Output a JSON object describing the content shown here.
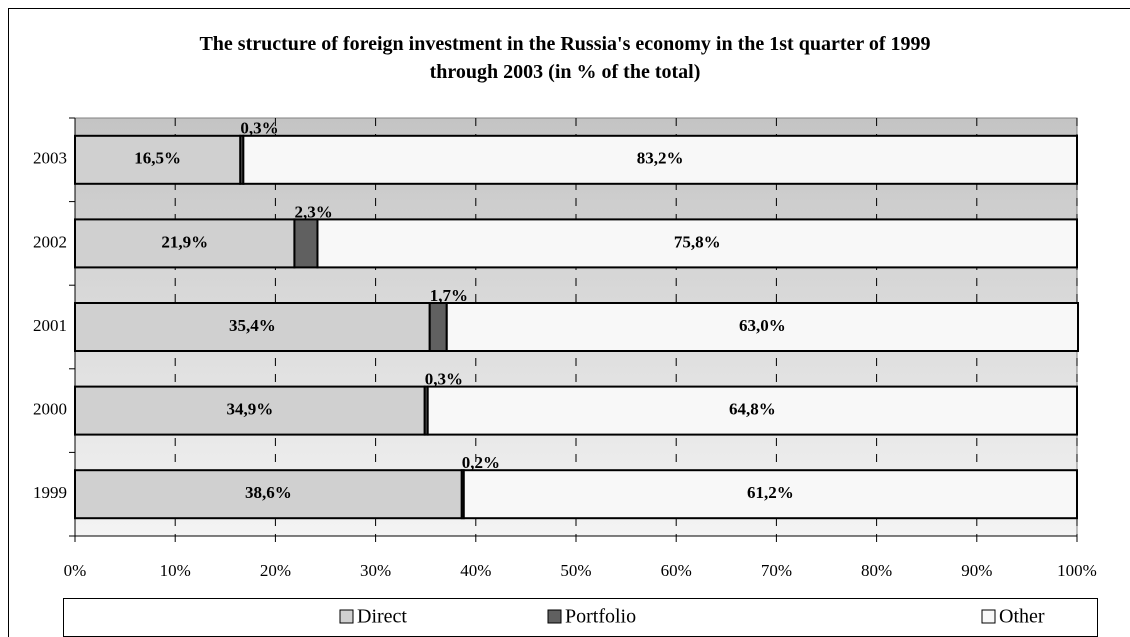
{
  "chart_data": {
    "type": "stacked-bar-horizontal",
    "title": "The structure of foreign investment in the Russia's economy in the 1st quarter of 1999 through 2003 (in % of the total)",
    "categories": [
      "1999",
      "2000",
      "2001",
      "2002",
      "2003"
    ],
    "series": [
      {
        "name": "Direct",
        "color": "#d0d0d0",
        "values": [
          38.6,
          34.9,
          35.4,
          21.9,
          16.5
        ],
        "value_labels": [
          "38,6%",
          "34,9%",
          "35,4%",
          "21,9%",
          "16,5%"
        ]
      },
      {
        "name": "Portfolio",
        "color": "#606060",
        "values": [
          0.2,
          0.3,
          1.7,
          2.3,
          0.3
        ],
        "value_labels": [
          "0,2%",
          "0,3%",
          "1,7%",
          "2,3%",
          "0,3%"
        ]
      },
      {
        "name": "Other",
        "color": "#f8f8f8",
        "values": [
          61.2,
          64.8,
          63.0,
          75.8,
          83.2
        ],
        "value_labels": [
          "61,2%",
          "64,8%",
          "63,0%",
          "75,8%",
          "83,2%"
        ]
      }
    ],
    "xlim": [
      0,
      100
    ],
    "xticks": [
      {
        "value": 0,
        "label": "0%"
      },
      {
        "value": 10,
        "label": "10%"
      },
      {
        "value": 20,
        "label": "20%"
      },
      {
        "value": 30,
        "label": "30%"
      },
      {
        "value": 40,
        "label": "40%"
      },
      {
        "value": 50,
        "label": "50%"
      },
      {
        "value": 60,
        "label": "60%"
      },
      {
        "value": 70,
        "label": "70%"
      },
      {
        "value": 80,
        "label": "80%"
      },
      {
        "value": 90,
        "label": "90%"
      },
      {
        "value": 100,
        "label": "100%"
      }
    ],
    "grid": true,
    "legend": "bottom"
  }
}
